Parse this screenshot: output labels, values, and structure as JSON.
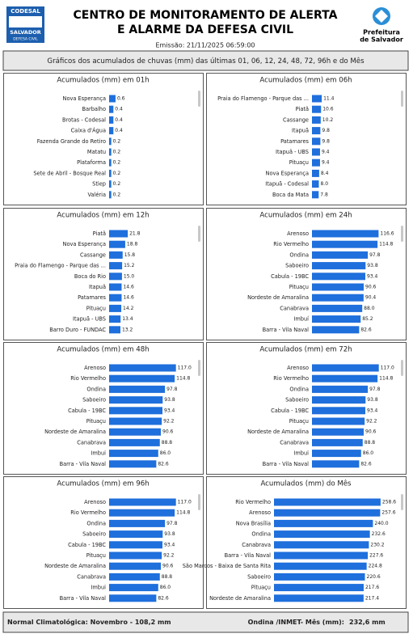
{
  "header": {
    "title_line1": "CENTRO DE MONITORAMENTO DE ALERTA",
    "title_line2": "E ALARME DA DEFESA CIVIL",
    "emission": "Emissão: 21/11/2025 06:59:00",
    "logo_left": {
      "name": "CODESAL",
      "city": "SALVADOR",
      "sub": "DEFESA CIVIL"
    },
    "logo_right": {
      "line1": "Prefeitura",
      "line2": "de Salvador"
    }
  },
  "banner": "Gráficos dos acumulados de chuvas (mm) das últimas 01, 06, 12, 24, 48, 72, 96h e do Mês",
  "chart_data": [
    {
      "type": "bar",
      "horizontal": true,
      "title": "Acumulados (mm) em 01h",
      "color": "#1f6fdc",
      "xlim": [
        0,
        8
      ],
      "categories": [
        "Nova Esperança",
        "Barbalho",
        "Brotas - Codesal",
        "Caixa d'Água",
        "Fazenda Grande do Retiro",
        "Matatu",
        "Plataforma",
        "Sete de Abril - Bosque Real",
        "Stiep",
        "Valéria"
      ],
      "values": [
        0.6,
        0.4,
        0.4,
        0.4,
        0.2,
        0.2,
        0.2,
        0.2,
        0.2,
        0.2
      ],
      "value_labels": [
        "0.6",
        "0.4",
        "0.4",
        "0.4",
        "0.2",
        "0.2",
        "0.2",
        "0.2",
        "0.2",
        "0.2"
      ]
    },
    {
      "type": "bar",
      "horizontal": true,
      "title": "Acumulados (mm) em 06h",
      "color": "#1f6fdc",
      "xlim": [
        0,
        100
      ],
      "categories": [
        "Praia do Flamengo - Parque das ...",
        "Piatã",
        "Cassange",
        "Itapuã",
        "Patamares",
        "Itapuã - UBS",
        "Pituaçu",
        "Nova Esperança",
        "Itapuã - Codesal",
        "Boca da Mata"
      ],
      "values": [
        11.4,
        10.6,
        10.2,
        9.8,
        9.8,
        9.4,
        9.4,
        8.4,
        8.0,
        7.8
      ],
      "value_labels": [
        "11.4",
        "10.6",
        "10.2",
        "9.8",
        "9.8",
        "9.4",
        "9.4",
        "8.4",
        "8.0",
        "7.8"
      ]
    },
    {
      "type": "bar",
      "horizontal": true,
      "title": "Acumulados (mm) em 12h",
      "color": "#1f6fdc",
      "xlim": [
        0,
        100
      ],
      "categories": [
        "Piatã",
        "Nova Esperança",
        "Cassange",
        "Praia do Flamengo - Parque das ...",
        "Boca do Rio",
        "Itapuã",
        "Patamares",
        "Pituaçu",
        "Itapuã - UBS",
        "Barro Duro - FUNDAC"
      ],
      "values": [
        21.8,
        18.8,
        15.8,
        15.2,
        15.0,
        14.6,
        14.6,
        14.2,
        13.4,
        13.2
      ],
      "value_labels": [
        "21.8",
        "18.8",
        "15.8",
        "15.2",
        "15.0",
        "14.6",
        "14.6",
        "14.2",
        "13.4",
        "13.2"
      ]
    },
    {
      "type": "bar",
      "horizontal": true,
      "title": "Acumulados (mm) em 24h",
      "color": "#1f6fdc",
      "xlim": [
        0,
        150
      ],
      "categories": [
        "Arenoso",
        "Rio Vermelho",
        "Ondina",
        "Saboeiro",
        "Cabula - 19BC",
        "Pituaçu",
        "Nordeste de Amaralina",
        "Canabrava",
        "Imbuí",
        "Barra - Vila Naval"
      ],
      "values": [
        116.6,
        114.8,
        97.8,
        93.8,
        93.4,
        90.6,
        90.4,
        88.0,
        85.2,
        82.6
      ],
      "value_labels": [
        "116.6",
        "114.8",
        "97.8",
        "93.8",
        "93.4",
        "90.6",
        "90.4",
        "88.0",
        "85.2",
        "82.6"
      ]
    },
    {
      "type": "bar",
      "horizontal": true,
      "title": "Acumulados (mm) em 48h",
      "color": "#1f6fdc",
      "xlim": [
        0,
        150
      ],
      "categories": [
        "Arenoso",
        "Rio Vermelho",
        "Ondina",
        "Saboeiro",
        "Cabula - 19BC",
        "Pituaçu",
        "Nordeste de Amaralina",
        "Canabrava",
        "Imbui",
        "Barra - Vila Naval"
      ],
      "values": [
        117.0,
        114.8,
        97.8,
        93.8,
        93.4,
        92.2,
        90.6,
        88.8,
        86.0,
        82.6
      ],
      "value_labels": [
        "117.0",
        "114.8",
        "97.8",
        "93.8",
        "93.4",
        "92.2",
        "90.6",
        "88.8",
        "86.0",
        "82.6"
      ]
    },
    {
      "type": "bar",
      "horizontal": true,
      "title": "Acumulados (mm) em 72h",
      "color": "#1f6fdc",
      "xlim": [
        0,
        150
      ],
      "categories": [
        "Arenoso",
        "Rio Vermelho",
        "Ondina",
        "Saboeiro",
        "Cabula - 19BC",
        "Pituaçu",
        "Nordeste de Amaralina",
        "Canabrava",
        "Imbui",
        "Barra - Vila Naval"
      ],
      "values": [
        117.0,
        114.8,
        97.8,
        93.8,
        93.4,
        92.2,
        90.6,
        88.8,
        86.0,
        82.6
      ],
      "value_labels": [
        "117.0",
        "114.8",
        "97.8",
        "93.8",
        "93.4",
        "92.2",
        "90.6",
        "88.8",
        "86.0",
        "82.6"
      ]
    },
    {
      "type": "bar",
      "horizontal": true,
      "title": "Acumulados (mm) em 96h",
      "color": "#1f6fdc",
      "xlim": [
        0,
        150
      ],
      "categories": [
        "Arenoso",
        "Rio Vermelho",
        "Ondina",
        "Saboeiro",
        "Cabula - 19BC",
        "Pituaçu",
        "Nordeste de Amaralina",
        "Canabrava",
        "Imbui",
        "Barra - Vila Naval"
      ],
      "values": [
        117.0,
        114.8,
        97.8,
        93.8,
        93.4,
        92.2,
        90.6,
        88.8,
        86.0,
        82.6
      ],
      "value_labels": [
        "117.0",
        "114.8",
        "97.8",
        "93.8",
        "93.4",
        "92.2",
        "90.6",
        "88.8",
        "86.0",
        "82.6"
      ]
    },
    {
      "type": "bar",
      "horizontal": true,
      "title": "Acumulados (mm) do Mês",
      "color": "#1f6fdc",
      "xlim": [
        0,
        300
      ],
      "categories": [
        "Rio Vermelho",
        "Arenoso",
        "Nova Brasília",
        "Ondina",
        "Canabrava",
        "Barra - Vila Naval",
        "São Marcos - Baixa de Santa Rita",
        "Saboeiro",
        "Pituaçu",
        "Nordeste de Amaralina"
      ],
      "values": [
        258.6,
        257.6,
        240.0,
        232.6,
        230.2,
        227.6,
        224.8,
        220.6,
        217.6,
        217.4
      ],
      "value_labels": [
        "258.6",
        "257.6",
        "240.0",
        "232.6",
        "230.2",
        "227.6",
        "224.8",
        "220.6",
        "217.6",
        "217.4"
      ]
    }
  ],
  "footer": {
    "normal": "Normal Climatológica: Novembro - 108,2 mm",
    "station_label": "Ondina /INMET- Mês (mm):",
    "station_value": "232,6 mm"
  }
}
